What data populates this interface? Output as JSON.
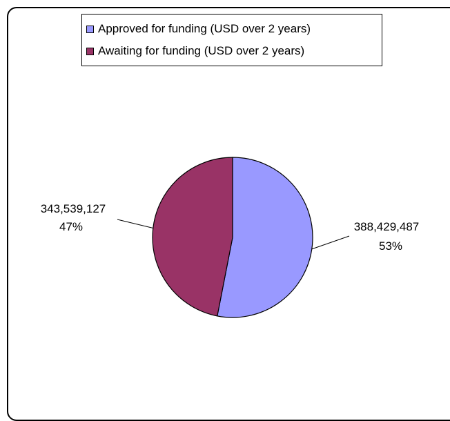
{
  "chart_data": {
    "type": "pie",
    "legend_position": "top",
    "slices": [
      {
        "name": "Approved for funding  (USD over 2 years)",
        "value": 388429487,
        "value_label": "388,429,487",
        "percent_label": "53%",
        "color": "#9999ff"
      },
      {
        "name": "Awaiting for funding  (USD over 2 years)",
        "value": 343539127,
        "value_label": "343,539,127",
        "percent_label": "47%",
        "color": "#993366"
      }
    ]
  }
}
